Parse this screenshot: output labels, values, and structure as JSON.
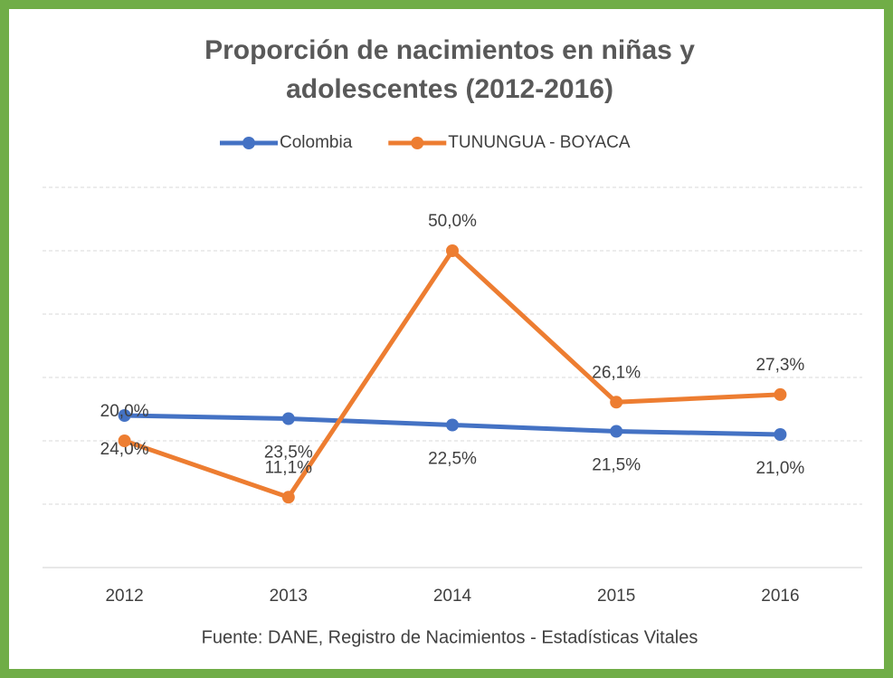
{
  "chart_data": {
    "type": "line",
    "title": [
      "Proporción de nacimientos en niñas y",
      "adolescentes (2012-2016)"
    ],
    "source": "Fuente: DANE, Registro de Nacimientos - Estadísticas Vitales",
    "categories": [
      "2012",
      "2013",
      "2014",
      "2015",
      "2016"
    ],
    "series": [
      {
        "name": "Colombia",
        "color": "#4472c4",
        "values": [
          24.0,
          23.5,
          22.5,
          21.5,
          21.0
        ],
        "value_labels": [
          "24,0%",
          "23,5%",
          "22,5%",
          "21,5%",
          "21,0%"
        ]
      },
      {
        "name": "TUNUNGUA - BOYACA",
        "color": "#ed7d31",
        "values": [
          20.0,
          11.1,
          50.0,
          26.1,
          27.3
        ],
        "value_labels": [
          "20,0%",
          "11,1%",
          "50,0%",
          "26,1%",
          "27,3%"
        ]
      }
    ],
    "ylim": [
      0,
      60
    ],
    "yticks": [
      0,
      10,
      20,
      30,
      40,
      50,
      60
    ],
    "grid": true
  }
}
